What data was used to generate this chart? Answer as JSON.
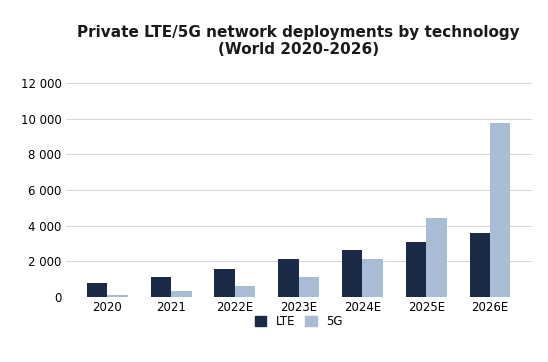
{
  "title_line1": "Private LTE/5G network deployments by technology",
  "title_line2": "(World 2020-2026)",
  "categories": [
    "2020",
    "2021",
    "2022E",
    "2023E",
    "2024E",
    "2025E",
    "2026E"
  ],
  "lte_values": [
    800,
    1100,
    1550,
    2150,
    2650,
    3100,
    3600
  ],
  "5g_values": [
    100,
    350,
    600,
    1100,
    2150,
    4450,
    9750
  ],
  "lte_color": "#1b2a47",
  "5g_color": "#a8bcd4",
  "ylim": [
    0,
    13000
  ],
  "yticks": [
    0,
    2000,
    4000,
    6000,
    8000,
    10000,
    12000
  ],
  "ytick_labels": [
    "0",
    "2 000",
    "4 000",
    "6 000",
    "8 000",
    "10 000",
    "12 000"
  ],
  "background_color": "#ffffff",
  "grid_color": "#d0d0d0",
  "legend_lte": "LTE",
  "legend_5g": "5G",
  "title_fontsize": 11,
  "bar_width": 0.32,
  "figsize": [
    5.48,
    3.62
  ],
  "dpi": 100
}
